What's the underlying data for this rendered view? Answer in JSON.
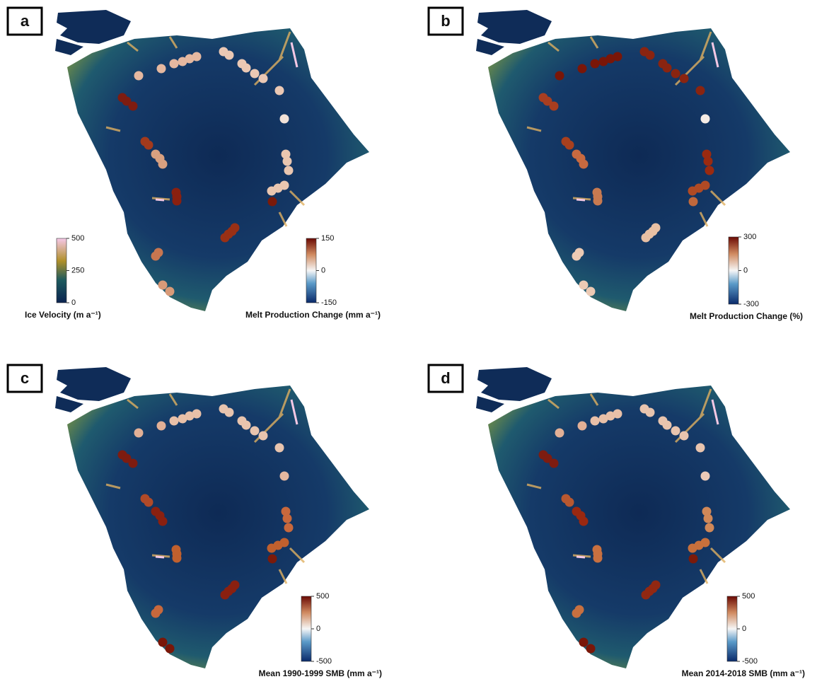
{
  "panels": [
    {
      "label": "a",
      "colorbars": [
        {
          "title": "Ice Velocity (m a⁻¹)",
          "ticks": [
            500,
            250,
            0
          ]
        },
        {
          "title": "Melt Production Change (mm a⁻¹)",
          "ticks": [
            150,
            0,
            -150
          ]
        }
      ]
    },
    {
      "label": "b",
      "colorbars": [
        {
          "title": "Melt Production Change (%)",
          "ticks": [
            300,
            0,
            -300
          ]
        }
      ]
    },
    {
      "label": "c",
      "colorbars": [
        {
          "title": "Mean 1990-1999 SMB (mm a⁻¹)",
          "ticks": [
            500,
            0,
            -500
          ]
        }
      ]
    },
    {
      "label": "d",
      "colorbars": [
        {
          "title": "Mean 2014-2018 SMB (mm a⁻¹)",
          "ticks": [
            500,
            0,
            -500
          ]
        }
      ]
    }
  ]
}
